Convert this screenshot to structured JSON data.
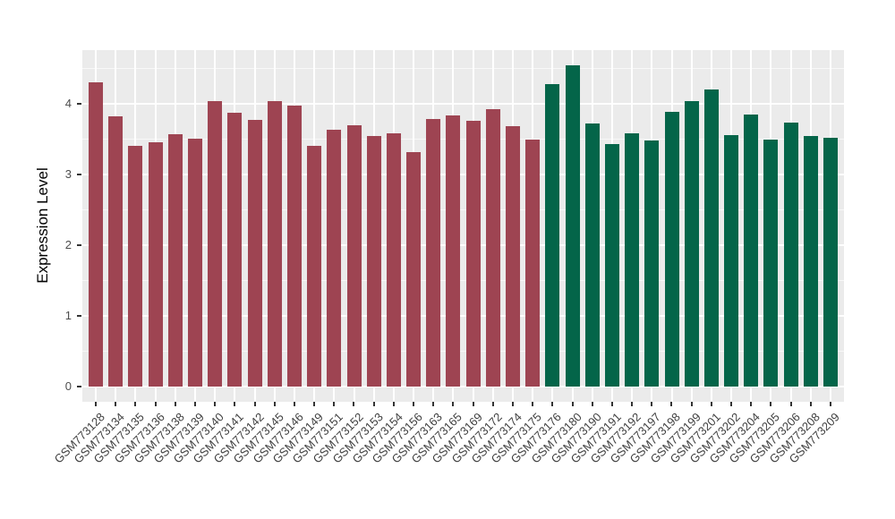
{
  "chart_data": {
    "type": "bar",
    "ylabel": "Expression Level",
    "yticks": [
      0,
      1,
      2,
      3,
      4
    ],
    "y_minor_ticks": [
      0.5,
      1.5,
      2.5,
      3.5,
      4.5
    ],
    "ylim": [
      -0.21,
      4.76
    ],
    "categories": [
      "GSM773128",
      "GSM773134",
      "GSM773135",
      "GSM773136",
      "GSM773138",
      "GSM773139",
      "GSM773140",
      "GSM773141",
      "GSM773142",
      "GSM773145",
      "GSM773146",
      "GSM773149",
      "GSM773151",
      "GSM773152",
      "GSM773153",
      "GSM773154",
      "GSM773156",
      "GSM773163",
      "GSM773165",
      "GSM773169",
      "GSM773172",
      "GSM773174",
      "GSM773175",
      "GSM773176",
      "GSM773180",
      "GSM773190",
      "GSM773191",
      "GSM773192",
      "GSM773197",
      "GSM773198",
      "GSM773199",
      "GSM773201",
      "GSM773202",
      "GSM773204",
      "GSM773205",
      "GSM773206",
      "GSM773208",
      "GSM773209"
    ],
    "values": [
      4.31,
      3.82,
      3.41,
      3.46,
      3.57,
      3.51,
      4.04,
      3.87,
      3.78,
      4.04,
      3.97,
      3.41,
      3.64,
      3.7,
      3.54,
      3.58,
      3.32,
      3.79,
      3.84,
      3.76,
      3.93,
      3.68,
      3.49,
      4.28,
      4.54,
      3.72,
      3.43,
      3.58,
      3.48,
      3.89,
      4.04,
      4.21,
      3.56,
      3.85,
      3.5,
      3.74,
      3.54,
      3.52
    ],
    "group_split_index": 23,
    "legend": "none",
    "grid": "on",
    "colors": {
      "group1_bar": "#9E4452",
      "group2_bar": "#046549",
      "panel_background": "#EBEBEB",
      "gridline": "#FFFFFF",
      "axis_text_y": "#4D4D4D",
      "axis_text_x": "#404040",
      "axis_title": "#000000",
      "tick_mark": "#333333"
    }
  }
}
